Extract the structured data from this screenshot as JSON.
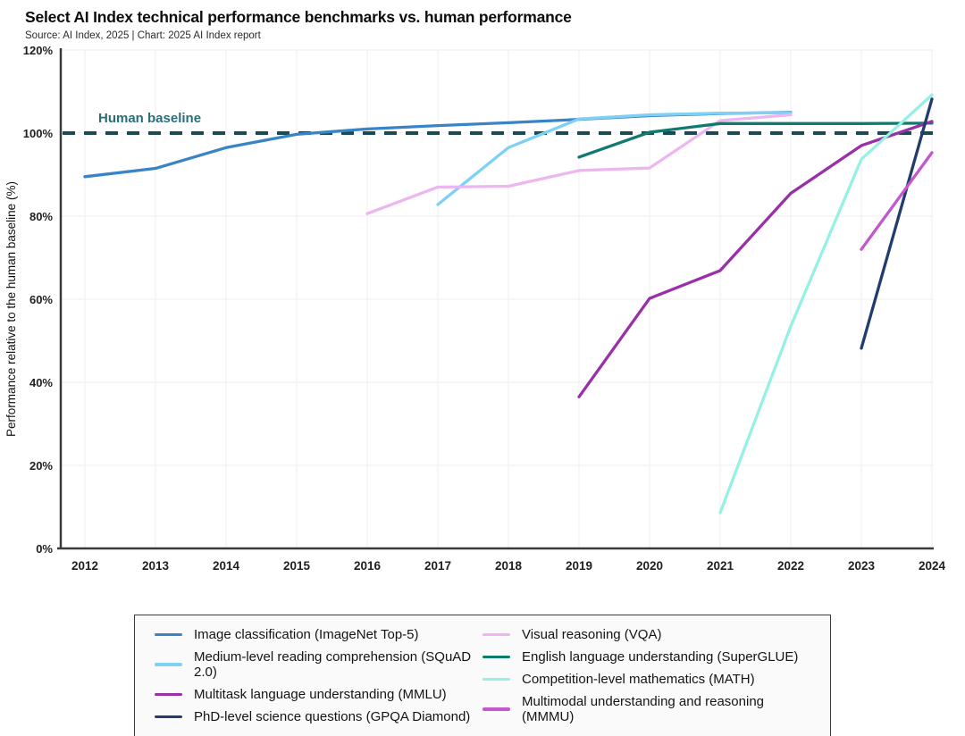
{
  "header": {
    "title": "Select AI Index technical performance benchmarks vs. human performance",
    "source": "Source: AI Index, 2025 | Chart: 2025 AI Index report"
  },
  "chart_data": {
    "type": "line",
    "title": "Select AI Index technical performance benchmarks vs. human performance",
    "xlabel": "",
    "ylabel": "Performance relative to the human baseline (%)",
    "xlim": [
      2012,
      2024
    ],
    "ylim": [
      0,
      120
    ],
    "grid": true,
    "legend_position": "bottom",
    "x_ticks": [
      2012,
      2013,
      2014,
      2015,
      2016,
      2017,
      2018,
      2019,
      2020,
      2021,
      2022,
      2023,
      2024
    ],
    "y_ticks": [
      {
        "value": 0,
        "label": "0%"
      },
      {
        "value": 20,
        "label": "20%"
      },
      {
        "value": 40,
        "label": "40%"
      },
      {
        "value": 60,
        "label": "60%"
      },
      {
        "value": 80,
        "label": "80%"
      },
      {
        "value": 100,
        "label": "100%"
      },
      {
        "value": 120,
        "label": "120%"
      }
    ],
    "human_baseline": {
      "value": 100,
      "label": "Human baseline"
    },
    "colors": {
      "baseline_line": "#1b4a52",
      "baseline_text": "#2a6f78",
      "axis": "#3a3a3a",
      "grid": "#f2eff3",
      "tick_text": "#1f1f1f"
    },
    "series": [
      {
        "name": "Image classification (ImageNet Top-5)",
        "color": "#3884c6",
        "x": [
          2012,
          2013,
          2014,
          2015,
          2016,
          2017,
          2018,
          2019,
          2020,
          2021,
          2022
        ],
        "values": [
          89.5,
          91.5,
          96.5,
          99.7,
          101.0,
          101.8,
          102.5,
          103.3,
          104.2,
          104.7,
          105.0
        ]
      },
      {
        "name": "Medium-level reading comprehension (SQuAD 2.0)",
        "color": "#7ed0f5",
        "x": [
          2017,
          2018,
          2019,
          2020,
          2021,
          2022
        ],
        "values": [
          82.8,
          96.5,
          103.4,
          104.4,
          104.8,
          104.9
        ]
      },
      {
        "name": "Visual reasoning (VQA)",
        "color": "#edb6f0",
        "x": [
          2016,
          2017,
          2018,
          2019,
          2020,
          2021,
          2022
        ],
        "values": [
          80.6,
          87.0,
          87.2,
          91.0,
          91.6,
          103.0,
          104.4
        ]
      },
      {
        "name": "English language understanding (SuperGLUE)",
        "color": "#117a6f",
        "x": [
          2019,
          2020,
          2021,
          2022,
          2023,
          2024
        ],
        "values": [
          94.2,
          100.2,
          102.3,
          102.3,
          102.3,
          102.4
        ]
      },
      {
        "name": "Multitask language understanding (MMLU)",
        "color": "#9a30a8",
        "x": [
          2019,
          2020,
          2021,
          2022,
          2023,
          2024
        ],
        "values": [
          36.5,
          60.2,
          66.9,
          85.5,
          97.0,
          102.8
        ]
      },
      {
        "name": "PhD-level science questions (GPQA Diamond)",
        "color": "#223c6e",
        "x": [
          2023,
          2024
        ],
        "values": [
          48.2,
          108.2
        ]
      },
      {
        "name": "Competition-level mathematics (MATH)",
        "color": "#96f0e3",
        "x": [
          2021,
          2022,
          2023,
          2024
        ],
        "values": [
          8.6,
          53.5,
          93.7,
          109.2
        ]
      },
      {
        "name": "Multimodal understanding and reasoning (MMMU)",
        "color": "#c257ce",
        "x": [
          2023,
          2024
        ],
        "values": [
          72.0,
          95.3
        ]
      }
    ]
  }
}
